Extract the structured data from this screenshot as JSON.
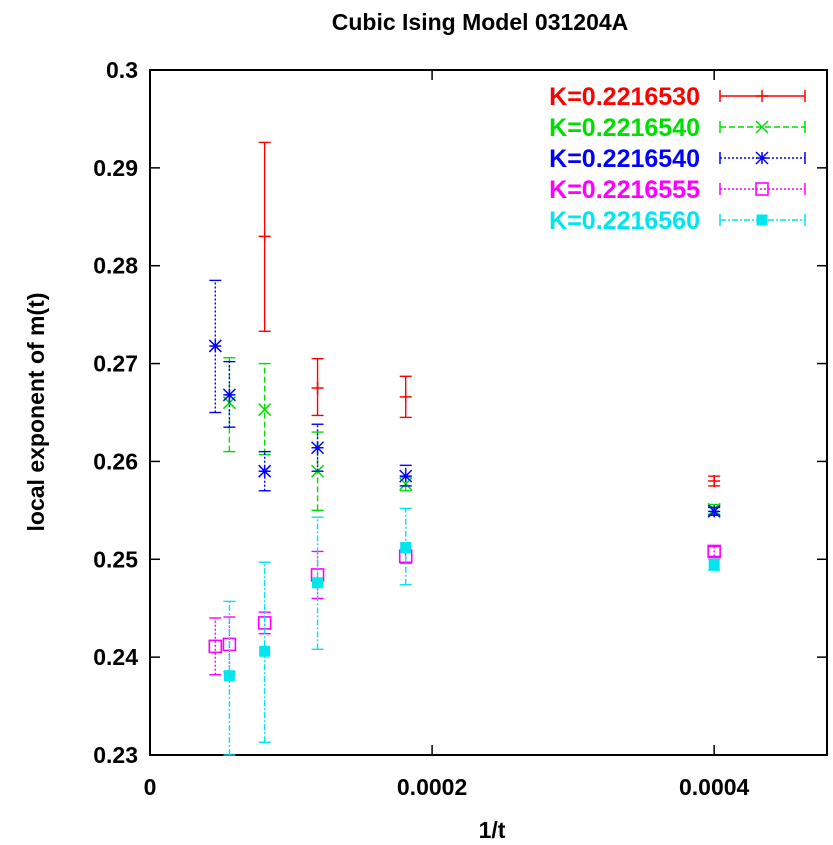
{
  "chart_data": {
    "type": "scatter",
    "title": "Cubic Ising Model 031204A",
    "xlabel": "1/t",
    "ylabel": "local exponent of m(t)",
    "xlim": [
      0,
      0.00048
    ],
    "ylim": [
      0.23,
      0.3
    ],
    "xticks": [
      0,
      0.0002,
      0.0004
    ],
    "xtick_labels": [
      "0",
      "0.0002",
      "0.0004"
    ],
    "yticks": [
      0.23,
      0.24,
      0.25,
      0.26,
      0.27,
      0.28,
      0.29,
      0.3
    ],
    "ytick_labels": [
      "0.23",
      "0.24",
      "0.25",
      "0.26",
      "0.27",
      "0.28",
      "0.29",
      "0.3"
    ],
    "grid": false,
    "legend_position": "top-right",
    "error_bars": true,
    "series": [
      {
        "name": "K=0.2216530",
        "color": "#ff0000",
        "marker": "plus",
        "line": "solid",
        "points": [
          {
            "x": 8.13e-05,
            "y": 0.283,
            "lo": 0.2733,
            "hi": 0.2926
          },
          {
            "x": 0.0001188,
            "y": 0.2675,
            "lo": 0.2647,
            "hi": 0.2705
          },
          {
            "x": 0.0001813,
            "y": 0.2666,
            "lo": 0.2645,
            "hi": 0.2687
          },
          {
            "x": 0.0004,
            "y": 0.258,
            "lo": 0.2575,
            "hi": 0.2585
          }
        ]
      },
      {
        "name": "K=0.2216540",
        "color": "#00dd00",
        "marker": "x",
        "line": "dashed",
        "points": [
          {
            "x": 5.63e-05,
            "y": 0.266,
            "lo": 0.261,
            "hi": 0.2706
          },
          {
            "x": 8.13e-05,
            "y": 0.2653,
            "lo": 0.2607,
            "hi": 0.27
          },
          {
            "x": 0.0001188,
            "y": 0.259,
            "lo": 0.255,
            "hi": 0.263
          },
          {
            "x": 0.0001813,
            "y": 0.2577,
            "lo": 0.257,
            "hi": 0.2584
          },
          {
            "x": 0.0004,
            "y": 0.2551,
            "lo": 0.2546,
            "hi": 0.2556
          }
        ]
      },
      {
        "name": "K=0.2216540",
        "color": "#0000ff",
        "marker": "star",
        "line": "dotted",
        "points": [
          {
            "x": 4.63e-05,
            "y": 0.2718,
            "lo": 0.265,
            "hi": 0.2785
          },
          {
            "x": 5.63e-05,
            "y": 0.2668,
            "lo": 0.2635,
            "hi": 0.2702
          },
          {
            "x": 8.13e-05,
            "y": 0.259,
            "lo": 0.257,
            "hi": 0.261
          },
          {
            "x": 0.0001188,
            "y": 0.2614,
            "lo": 0.259,
            "hi": 0.2638
          },
          {
            "x": 0.0001813,
            "y": 0.2585,
            "lo": 0.2575,
            "hi": 0.2596
          },
          {
            "x": 0.0004,
            "y": 0.2549,
            "lo": 0.2545,
            "hi": 0.2553
          }
        ]
      },
      {
        "name": "K=0.2216555",
        "color": "#ff00ff",
        "marker": "open-square",
        "line": "dotted",
        "points": [
          {
            "x": 4.63e-05,
            "y": 0.2411,
            "lo": 0.2382,
            "hi": 0.244
          },
          {
            "x": 5.63e-05,
            "y": 0.2413,
            "lo": 0.2385,
            "hi": 0.2441
          },
          {
            "x": 8.13e-05,
            "y": 0.2435,
            "lo": 0.2424,
            "hi": 0.2446
          },
          {
            "x": 0.0001188,
            "y": 0.2484,
            "lo": 0.246,
            "hi": 0.2508
          },
          {
            "x": 0.0001813,
            "y": 0.2503,
            "lo": 0.2496,
            "hi": 0.251
          },
          {
            "x": 0.0004,
            "y": 0.2508,
            "lo": 0.2503,
            "hi": 0.2513
          }
        ]
      },
      {
        "name": "K=0.2216560",
        "color": "#00e5ee",
        "marker": "filled-square",
        "line": "dashdot",
        "points": [
          {
            "x": 5.63e-05,
            "y": 0.2381,
            "lo": 0.23,
            "hi": 0.2457
          },
          {
            "x": 8.13e-05,
            "y": 0.2406,
            "lo": 0.2313,
            "hi": 0.2497
          },
          {
            "x": 0.0001188,
            "y": 0.2476,
            "lo": 0.2408,
            "hi": 0.2543
          },
          {
            "x": 0.0001813,
            "y": 0.2512,
            "lo": 0.2474,
            "hi": 0.2552
          },
          {
            "x": 0.0004,
            "y": 0.2494,
            "lo": 0.2489,
            "hi": 0.25
          }
        ]
      }
    ]
  }
}
